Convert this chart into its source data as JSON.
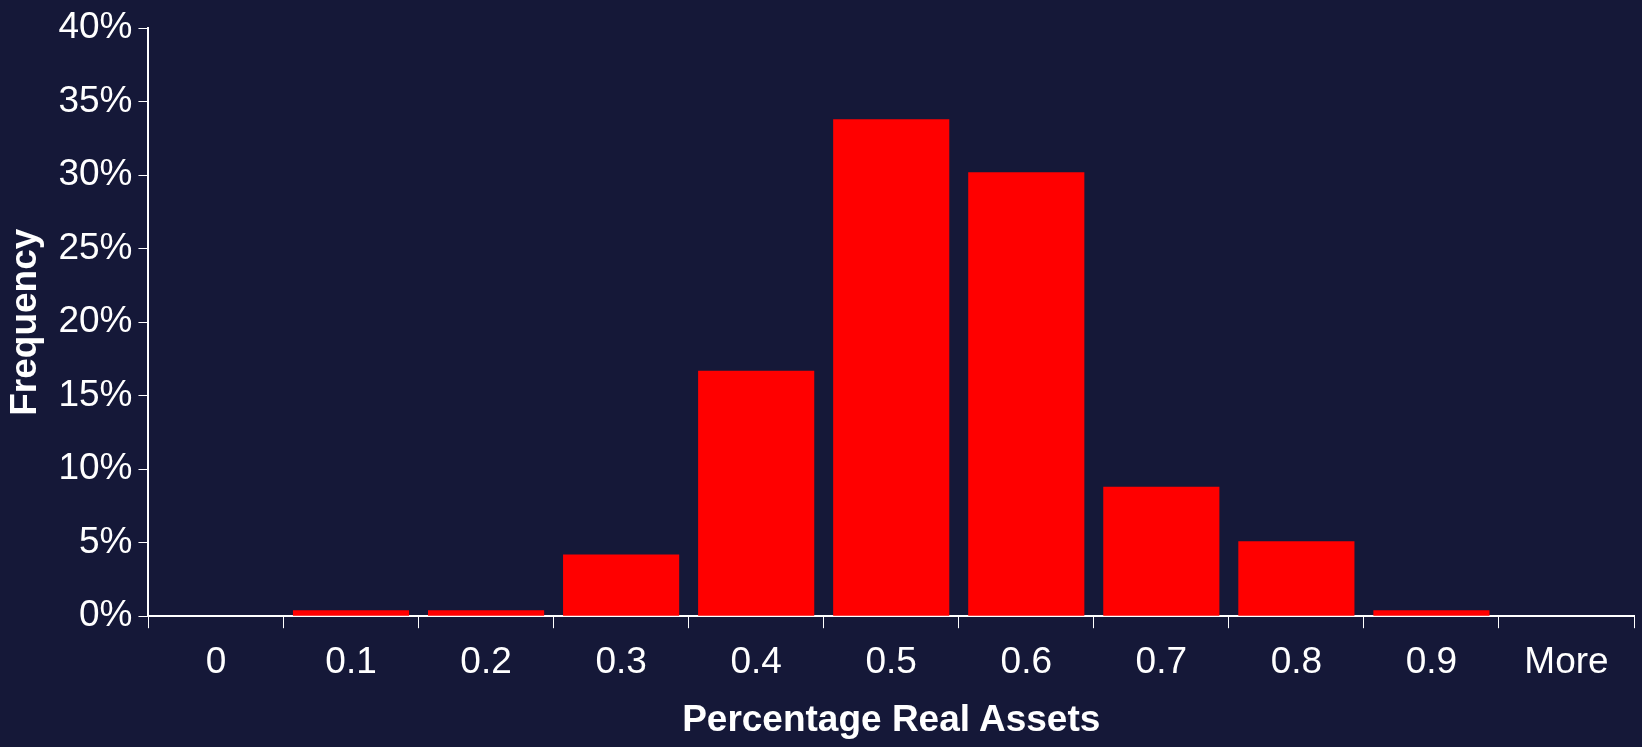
{
  "chart_data": {
    "type": "bar",
    "xlabel": "Percentage Real Assets",
    "ylabel": "Frequency",
    "categories": [
      "0",
      "0.1",
      "0.2",
      "0.3",
      "0.4",
      "0.5",
      "0.6",
      "0.7",
      "0.8",
      "0.9",
      "More"
    ],
    "values": [
      0,
      0.4,
      0.4,
      4.2,
      16.7,
      33.8,
      30.2,
      8.8,
      5.1,
      0.4,
      0
    ],
    "color": "#ff0000",
    "ylim": [
      0,
      40
    ],
    "yticks": [
      {
        "value": 0,
        "label": "0%"
      },
      {
        "value": 5,
        "label": "5%"
      },
      {
        "value": 10,
        "label": "10%"
      },
      {
        "value": 15,
        "label": "15%"
      },
      {
        "value": 20,
        "label": "20%"
      },
      {
        "value": 25,
        "label": "25%"
      },
      {
        "value": 30,
        "label": "30%"
      },
      {
        "value": 35,
        "label": "35%"
      },
      {
        "value": 40,
        "label": "40%"
      }
    ],
    "grid": false,
    "legend": false
  }
}
